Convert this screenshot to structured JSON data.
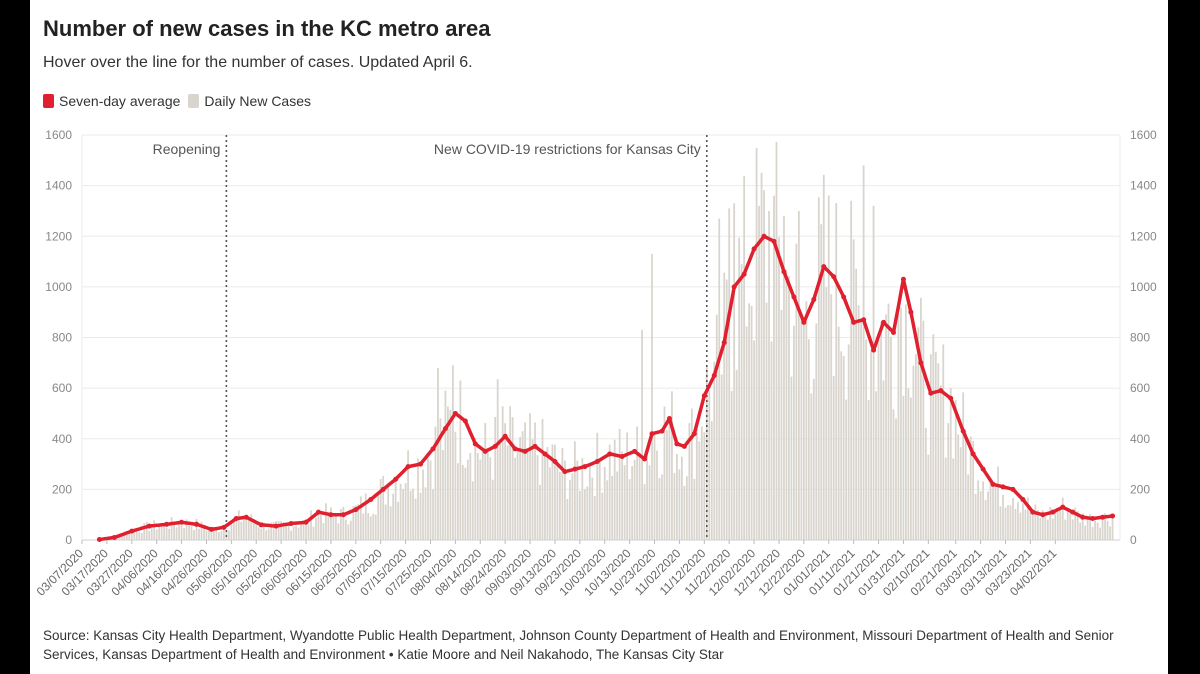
{
  "title": "Number of new cases in the KC metro area",
  "subtitle": "Hover over the line for the number of cases. Updated April 6.",
  "legend": [
    {
      "label": "Seven-day average",
      "color": "#e0202e"
    },
    {
      "label": "Daily New Cases",
      "color": "#d9d5ce"
    }
  ],
  "source": "Source: Kansas City Health Department, Wyandotte Public Health Department, Johnson County Department of Health and Environment, Missouri Department of Health and Senior Services, Kansas Department of Health and Environment • Katie Moore and Neil Nakahodo, The Kansas City Star",
  "chart_data": {
    "type": "bar",
    "ylim": [
      0,
      1600
    ],
    "yticks": [
      0,
      200,
      400,
      600,
      800,
      1000,
      1200,
      1400,
      1600
    ],
    "x_range": [
      "2020-03-07",
      "2021-04-06"
    ],
    "xticks": [
      "03/07/2020",
      "03/17/2020",
      "03/27/2020",
      "04/06/2020",
      "04/16/2020",
      "04/26/2020",
      "05/06/2020",
      "05/16/2020",
      "05/26/2020",
      "06/05/2020",
      "06/15/2020",
      "06/25/2020",
      "07/05/2020",
      "07/15/2020",
      "07/25/2020",
      "08/04/2020",
      "08/14/2020",
      "08/24/2020",
      "09/03/2020",
      "09/13/2020",
      "09/23/2020",
      "10/03/2020",
      "10/13/2020",
      "10/23/2020",
      "11/02/2020",
      "11/12/2020",
      "11/22/2020",
      "12/02/2020",
      "12/12/2020",
      "12/22/2020",
      "01/01/2021",
      "01/11/2021",
      "01/21/2021",
      "01/31/2021",
      "02/10/2021",
      "02/21/2021",
      "03/03/2021",
      "03/13/2021",
      "03/23/2021",
      "04/02/2021"
    ],
    "grid": true,
    "legend_position": "top-left",
    "annotations": [
      {
        "label": "Reopening",
        "date": "2020-05-04"
      },
      {
        "label": "New COVID-19 restrictions for Kansas City",
        "date": "2020-11-13"
      }
    ],
    "series": [
      {
        "name": "Seven-day average",
        "type": "line",
        "points": [
          [
            "2020-03-14",
            2
          ],
          [
            "2020-03-20",
            10
          ],
          [
            "2020-03-27",
            35
          ],
          [
            "2020-04-03",
            55
          ],
          [
            "2020-04-10",
            62
          ],
          [
            "2020-04-16",
            70
          ],
          [
            "2020-04-22",
            62
          ],
          [
            "2020-04-28",
            42
          ],
          [
            "2020-05-03",
            50
          ],
          [
            "2020-05-08",
            85
          ],
          [
            "2020-05-12",
            90
          ],
          [
            "2020-05-18",
            60
          ],
          [
            "2020-05-24",
            55
          ],
          [
            "2020-05-30",
            65
          ],
          [
            "2020-06-05",
            70
          ],
          [
            "2020-06-10",
            110
          ],
          [
            "2020-06-15",
            100
          ],
          [
            "2020-06-20",
            100
          ],
          [
            "2020-06-25",
            120
          ],
          [
            "2020-07-01",
            160
          ],
          [
            "2020-07-06",
            200
          ],
          [
            "2020-07-11",
            240
          ],
          [
            "2020-07-16",
            290
          ],
          [
            "2020-07-21",
            300
          ],
          [
            "2020-07-26",
            360
          ],
          [
            "2020-07-31",
            440
          ],
          [
            "2020-08-04",
            500
          ],
          [
            "2020-08-08",
            470
          ],
          [
            "2020-08-12",
            380
          ],
          [
            "2020-08-16",
            350
          ],
          [
            "2020-08-20",
            370
          ],
          [
            "2020-08-24",
            410
          ],
          [
            "2020-08-28",
            360
          ],
          [
            "2020-09-01",
            350
          ],
          [
            "2020-09-05",
            370
          ],
          [
            "2020-09-09",
            340
          ],
          [
            "2020-09-13",
            310
          ],
          [
            "2020-09-17",
            270
          ],
          [
            "2020-09-21",
            280
          ],
          [
            "2020-09-25",
            290
          ],
          [
            "2020-09-30",
            310
          ],
          [
            "2020-10-05",
            340
          ],
          [
            "2020-10-10",
            330
          ],
          [
            "2020-10-15",
            350
          ],
          [
            "2020-10-19",
            320
          ],
          [
            "2020-10-22",
            420
          ],
          [
            "2020-10-26",
            430
          ],
          [
            "2020-10-29",
            480
          ],
          [
            "2020-11-01",
            380
          ],
          [
            "2020-11-04",
            370
          ],
          [
            "2020-11-08",
            420
          ],
          [
            "2020-11-12",
            570
          ],
          [
            "2020-11-16",
            650
          ],
          [
            "2020-11-20",
            780
          ],
          [
            "2020-11-24",
            1000
          ],
          [
            "2020-11-28",
            1050
          ],
          [
            "2020-12-02",
            1150
          ],
          [
            "2020-12-06",
            1200
          ],
          [
            "2020-12-10",
            1180
          ],
          [
            "2020-12-14",
            1060
          ],
          [
            "2020-12-18",
            960
          ],
          [
            "2020-12-22",
            860
          ],
          [
            "2020-12-26",
            950
          ],
          [
            "2020-12-30",
            1080
          ],
          [
            "2021-01-03",
            1040
          ],
          [
            "2021-01-07",
            960
          ],
          [
            "2021-01-11",
            860
          ],
          [
            "2021-01-15",
            870
          ],
          [
            "2021-01-19",
            750
          ],
          [
            "2021-01-23",
            860
          ],
          [
            "2021-01-27",
            820
          ],
          [
            "2021-01-31",
            1030
          ],
          [
            "2021-02-03",
            900
          ],
          [
            "2021-02-07",
            700
          ],
          [
            "2021-02-11",
            580
          ],
          [
            "2021-02-15",
            590
          ],
          [
            "2021-02-19",
            560
          ],
          [
            "2021-02-24",
            430
          ],
          [
            "2021-02-28",
            340
          ],
          [
            "2021-03-04",
            280
          ],
          [
            "2021-03-08",
            220
          ],
          [
            "2021-03-12",
            210
          ],
          [
            "2021-03-16",
            200
          ],
          [
            "2021-03-20",
            160
          ],
          [
            "2021-03-24",
            110
          ],
          [
            "2021-03-28",
            100
          ],
          [
            "2021-04-01",
            110
          ],
          [
            "2021-04-05",
            130
          ],
          [
            "2021-04-09",
            110
          ],
          [
            "2021-04-13",
            90
          ],
          [
            "2021-04-17",
            85
          ],
          [
            "2021-04-21",
            90
          ],
          [
            "2021-04-25",
            95
          ]
        ]
      },
      {
        "name": "Daily New Cases",
        "type": "bar",
        "peaks": [
          [
            "2020-07-28",
            680
          ],
          [
            "2020-08-03",
            690
          ],
          [
            "2020-08-21",
            635
          ],
          [
            "2020-10-18",
            830
          ],
          [
            "2020-10-22",
            1130
          ],
          [
            "2020-11-18",
            1270
          ],
          [
            "2020-11-22",
            1310
          ],
          [
            "2020-11-24",
            1330
          ],
          [
            "2020-12-04",
            1320
          ],
          [
            "2020-12-08",
            1300
          ],
          [
            "2020-12-14",
            1280
          ],
          [
            "2020-12-20",
            1300
          ],
          [
            "2021-01-10",
            1340
          ],
          [
            "2021-01-15",
            1480
          ],
          [
            "2021-01-19",
            1320
          ],
          [
            "2021-02-01",
            930
          ]
        ]
      }
    ]
  }
}
